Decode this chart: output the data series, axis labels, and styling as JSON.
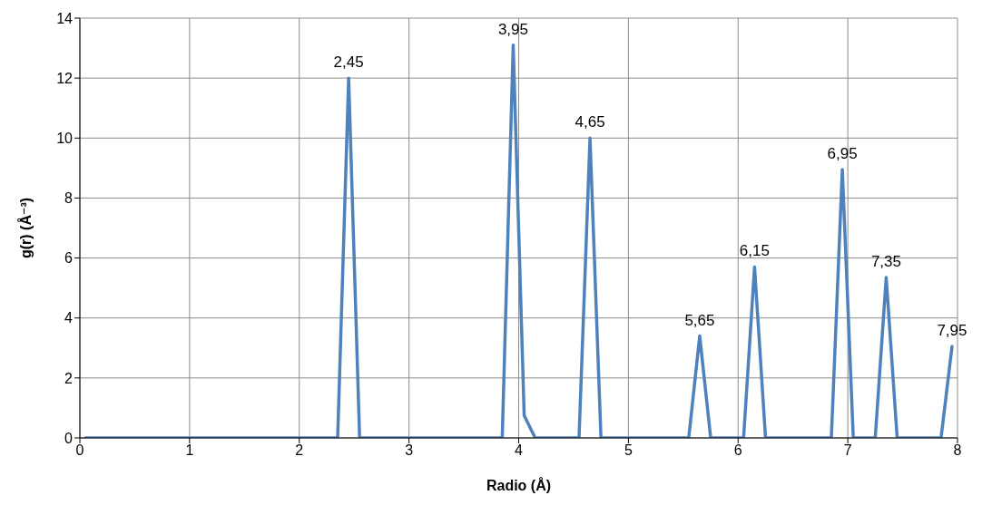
{
  "chart_data": {
    "type": "line",
    "xlabel": "Radio (Å)",
    "ylabel": "g(r) (Å⁻³)",
    "x": [
      0.05,
      2.35,
      2.45,
      2.55,
      3.85,
      3.95,
      4.05,
      4.15,
      4.55,
      4.65,
      4.75,
      5.55,
      5.65,
      5.75,
      6.05,
      6.15,
      6.25,
      6.85,
      6.95,
      7.05,
      7.25,
      7.35,
      7.45,
      7.85,
      7.95
    ],
    "series": [
      {
        "color": "#4f81bd",
        "values": [
          0,
          0,
          12,
          0,
          0,
          13.1,
          0.75,
          0,
          0,
          10,
          0,
          0,
          3.4,
          0,
          0,
          5.7,
          0,
          0,
          8.95,
          0,
          0,
          5.35,
          0,
          0,
          3.05
        ]
      }
    ],
    "xlim": [
      0,
      8
    ],
    "xticks": [
      0,
      1,
      2,
      3,
      4,
      5,
      6,
      7,
      8
    ],
    "ylim": [
      0,
      14
    ],
    "yticks": [
      0,
      2,
      4,
      6,
      8,
      10,
      12,
      14
    ],
    "grid": true,
    "annotations": [
      {
        "text": "2,45",
        "x": 2.45,
        "y": 12
      },
      {
        "text": "3,95",
        "x": 3.95,
        "y": 13.1
      },
      {
        "text": "4,65",
        "x": 4.65,
        "y": 10
      },
      {
        "text": "5,65",
        "x": 5.65,
        "y": 3.4
      },
      {
        "text": "6,15",
        "x": 6.15,
        "y": 5.7
      },
      {
        "text": "6,95",
        "x": 6.95,
        "y": 8.95
      },
      {
        "text": "7,35",
        "x": 7.35,
        "y": 5.35
      },
      {
        "text": "7,95",
        "x": 7.95,
        "y": 3.05
      }
    ]
  }
}
